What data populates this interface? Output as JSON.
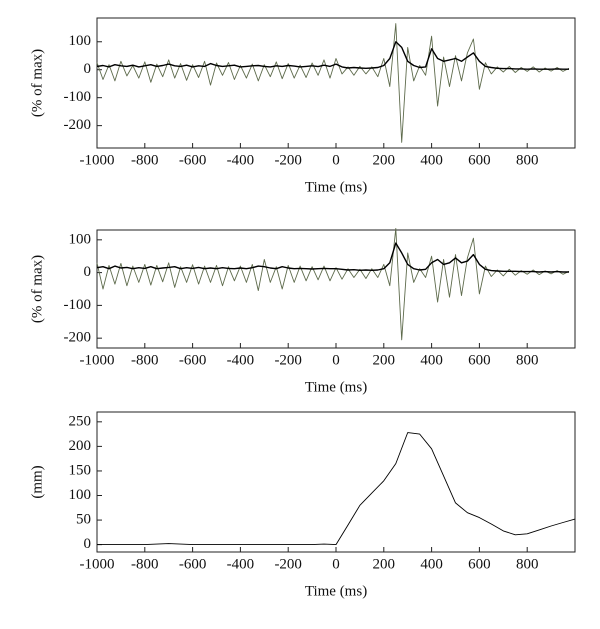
{
  "chart_data": [
    {
      "type": "line",
      "x_label": "Time (ms)",
      "y_label": "(% of max)",
      "x": [
        -1000,
        -975,
        -950,
        -925,
        -900,
        -875,
        -850,
        -825,
        -800,
        -775,
        -750,
        -725,
        -700,
        -675,
        -650,
        -625,
        -600,
        -575,
        -550,
        -525,
        -500,
        -475,
        -450,
        -425,
        -400,
        -375,
        -350,
        -325,
        -300,
        -275,
        -250,
        -225,
        -200,
        -175,
        -150,
        -125,
        -100,
        -75,
        -50,
        -25,
        0,
        25,
        50,
        75,
        100,
        125,
        150,
        175,
        200,
        225,
        250,
        275,
        300,
        325,
        350,
        375,
        400,
        425,
        450,
        475,
        500,
        525,
        550,
        575,
        600,
        625,
        650,
        675,
        700,
        725,
        750,
        775,
        800,
        825,
        850,
        875,
        900,
        925,
        950,
        975
      ],
      "series": [
        {
          "color": "#5e6b4c",
          "values": [
            25,
            -35,
            18,
            -40,
            30,
            -22,
            15,
            -30,
            28,
            -45,
            20,
            -25,
            35,
            -30,
            22,
            -38,
            18,
            -28,
            30,
            -55,
            24,
            -20,
            26,
            -35,
            15,
            -30,
            20,
            -40,
            18,
            -25,
            28,
            -32,
            22,
            -30,
            16,
            -28,
            24,
            -20,
            35,
            -30,
            40,
            -15,
            10,
            -20,
            12,
            -15,
            10,
            -25,
            40,
            -60,
            165,
            -260,
            80,
            -40,
            15,
            -20,
            120,
            -130,
            45,
            -60,
            50,
            -40,
            60,
            110,
            -70,
            25,
            -15,
            10,
            -8,
            12,
            -10,
            8,
            -6,
            10,
            -8,
            6,
            -5,
            8,
            -6,
            5
          ]
        },
        {
          "color": "#000000",
          "values": [
            12,
            15,
            10,
            18,
            14,
            12,
            16,
            10,
            14,
            18,
            12,
            15,
            20,
            14,
            12,
            16,
            10,
            14,
            12,
            22,
            15,
            12,
            14,
            16,
            10,
            12,
            14,
            15,
            12,
            10,
            14,
            12,
            15,
            13,
            10,
            12,
            14,
            11,
            16,
            12,
            20,
            10,
            6,
            8,
            6,
            5,
            6,
            8,
            15,
            40,
            100,
            80,
            30,
            15,
            8,
            10,
            75,
            40,
            30,
            35,
            40,
            30,
            45,
            60,
            30,
            12,
            8,
            5,
            4,
            4,
            3,
            3,
            2,
            3,
            2,
            2,
            2,
            3,
            2,
            2
          ]
        }
      ],
      "xlim": [
        -1000,
        1000
      ],
      "xticks": [
        -1000,
        -800,
        -600,
        -400,
        -200,
        0,
        200,
        400,
        600,
        800
      ],
      "ylim": [
        -280,
        185
      ],
      "yticks": [
        -200,
        -100,
        0,
        100
      ]
    },
    {
      "type": "line",
      "x_label": "Time (ms)",
      "y_label": "(% of max)",
      "x": [
        -1000,
        -975,
        -950,
        -925,
        -900,
        -875,
        -850,
        -825,
        -800,
        -775,
        -750,
        -725,
        -700,
        -675,
        -650,
        -625,
        -600,
        -575,
        -550,
        -525,
        -500,
        -475,
        -450,
        -425,
        -400,
        -375,
        -350,
        -325,
        -300,
        -275,
        -250,
        -225,
        -200,
        -175,
        -150,
        -125,
        -100,
        -75,
        -50,
        -25,
        0,
        25,
        50,
        75,
        100,
        125,
        150,
        175,
        200,
        225,
        250,
        275,
        300,
        325,
        350,
        375,
        400,
        425,
        450,
        475,
        500,
        525,
        550,
        575,
        600,
        625,
        650,
        675,
        700,
        725,
        750,
        775,
        800,
        825,
        850,
        875,
        900,
        925,
        950,
        975
      ],
      "series": [
        {
          "color": "#5e6b4c",
          "values": [
            30,
            -50,
            22,
            -35,
            28,
            -40,
            20,
            -30,
            25,
            -38,
            22,
            -28,
            30,
            -45,
            18,
            -30,
            24,
            -35,
            20,
            -30,
            22,
            -40,
            18,
            -25,
            20,
            -30,
            25,
            -55,
            40,
            -30,
            18,
            -50,
            22,
            -30,
            20,
            -25,
            18,
            -22,
            20,
            -25,
            15,
            -20,
            12,
            -15,
            10,
            -18,
            12,
            -15,
            25,
            -40,
            135,
            -205,
            60,
            -30,
            12,
            -15,
            50,
            -90,
            40,
            -75,
            55,
            -70,
            45,
            105,
            -65,
            20,
            -12,
            8,
            -10,
            10,
            -8,
            6,
            -5,
            8,
            -6,
            5,
            -4,
            6,
            -5,
            4
          ]
        },
        {
          "color": "#000000",
          "values": [
            15,
            18,
            12,
            20,
            14,
            16,
            12,
            15,
            13,
            18,
            12,
            14,
            16,
            18,
            12,
            15,
            13,
            16,
            12,
            14,
            12,
            15,
            13,
            12,
            14,
            12,
            15,
            20,
            18,
            14,
            12,
            18,
            14,
            12,
            13,
            12,
            11,
            12,
            13,
            12,
            12,
            10,
            8,
            9,
            7,
            8,
            7,
            8,
            12,
            30,
            90,
            60,
            25,
            12,
            8,
            10,
            30,
            40,
            25,
            30,
            45,
            30,
            35,
            55,
            25,
            10,
            6,
            5,
            4,
            4,
            4,
            3,
            3,
            3,
            2,
            3,
            2,
            3,
            2,
            2
          ]
        }
      ],
      "xlim": [
        -1000,
        1000
      ],
      "xticks": [
        -1000,
        -800,
        -600,
        -400,
        -200,
        0,
        200,
        400,
        600,
        800
      ],
      "ylim": [
        -230,
        130
      ],
      "yticks": [
        -200,
        -100,
        0,
        100
      ]
    },
    {
      "type": "line",
      "x_label": "Time (ms)",
      "y_label": "(mm)",
      "x": [
        -1000,
        -950,
        -900,
        -850,
        -800,
        -750,
        -700,
        -650,
        -600,
        -550,
        -500,
        -450,
        -400,
        -350,
        -300,
        -250,
        -200,
        -150,
        -100,
        -50,
        0,
        50,
        100,
        150,
        200,
        250,
        300,
        350,
        400,
        450,
        500,
        550,
        600,
        650,
        700,
        750,
        800,
        850,
        900,
        950,
        1000
      ],
      "series": [
        {
          "color": "#000000",
          "values": [
            0,
            0,
            0,
            0,
            0,
            1,
            2,
            1,
            0,
            0,
            0,
            0,
            0,
            0,
            0,
            0,
            0,
            0,
            0,
            1,
            0,
            40,
            80,
            105,
            130,
            165,
            228,
            225,
            195,
            140,
            85,
            65,
            55,
            42,
            28,
            20,
            22,
            30,
            38,
            45,
            52
          ]
        }
      ],
      "xlim": [
        -1000,
        1000
      ],
      "xticks": [
        -1000,
        -800,
        -600,
        -400,
        -200,
        0,
        200,
        400,
        600,
        800
      ],
      "ylim": [
        -15,
        270
      ],
      "yticks": [
        0,
        50,
        100,
        150,
        200,
        250
      ]
    }
  ]
}
